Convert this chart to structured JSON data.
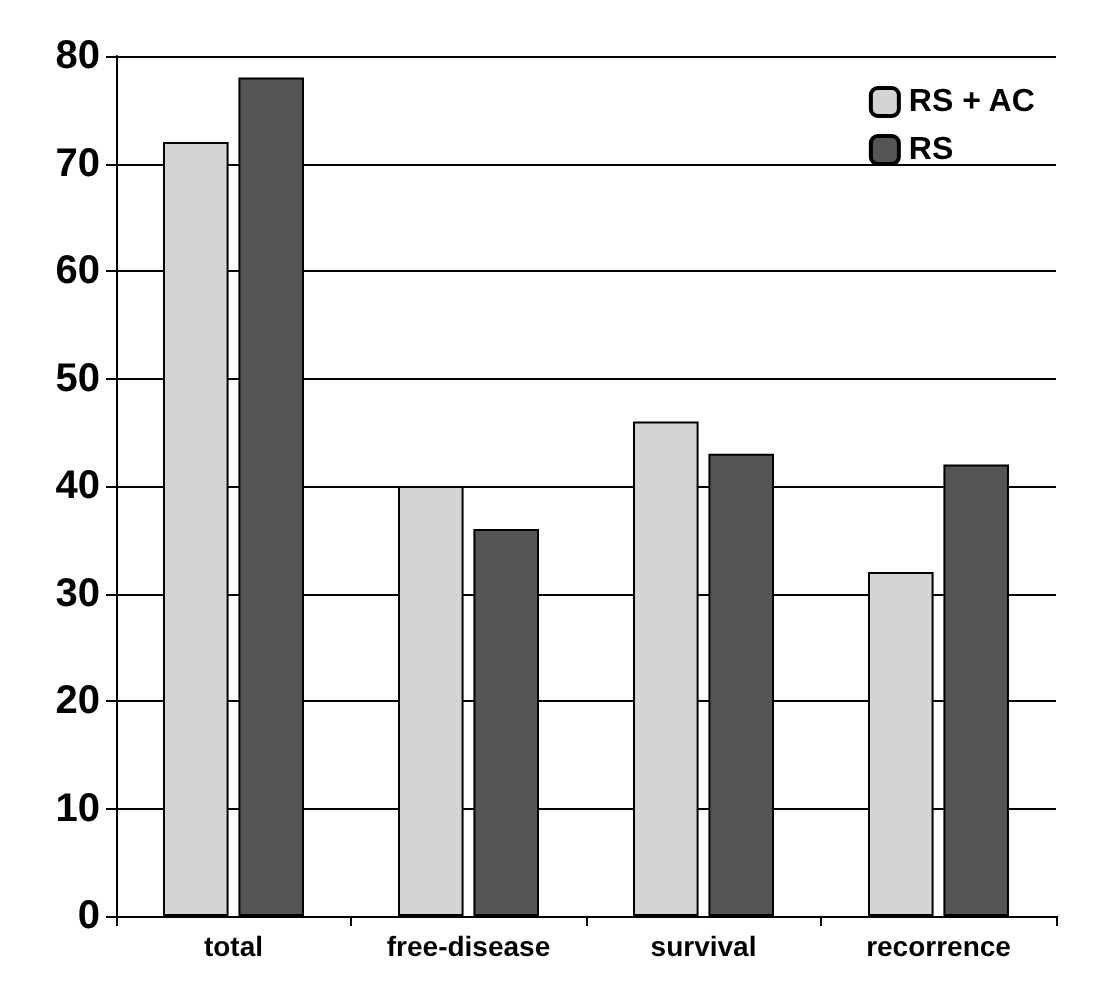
{
  "chart_data": {
    "type": "bar",
    "categories": [
      "total",
      "free-disease",
      "survival",
      "recorrence"
    ],
    "series": [
      {
        "name": "RS + AC",
        "color": "#d4d4d4",
        "values": [
          72,
          40,
          46,
          32
        ]
      },
      {
        "name": "RS",
        "color": "#555555",
        "values": [
          78,
          36,
          43,
          42
        ]
      }
    ],
    "ylim": [
      0,
      80
    ],
    "yticks": [
      0,
      10,
      20,
      30,
      40,
      50,
      60,
      70,
      80
    ],
    "grid": "y",
    "legend": "top right"
  }
}
